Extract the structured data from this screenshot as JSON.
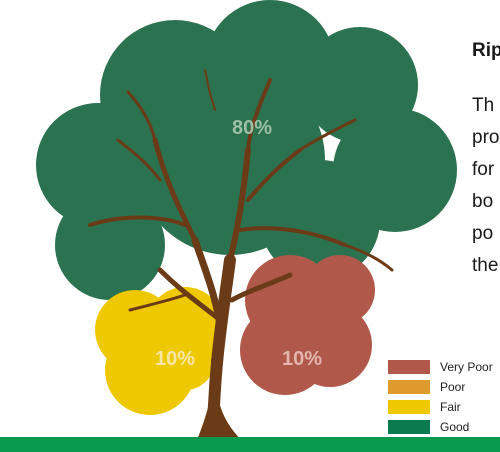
{
  "title": "Rip",
  "body_lines": [
    "Th",
    "pro",
    "for",
    "bo",
    "po",
    "the"
  ],
  "canopy": [
    {
      "label": "80%",
      "value": 80,
      "category": "Good",
      "color": "#2a7250"
    },
    {
      "label": "10%",
      "value": 10,
      "category": "Fair",
      "color": "#eec800"
    },
    {
      "label": "10%",
      "value": 10,
      "category": "Very Poor",
      "color": "#b0584a"
    }
  ],
  "legend": [
    {
      "label": "Very Poor",
      "color": "#b0584a"
    },
    {
      "label": "Poor",
      "color": "#de9a2c"
    },
    {
      "label": "Fair",
      "color": "#eec800"
    },
    {
      "label": "Good",
      "color": "#0a7a4f"
    }
  ],
  "colors": {
    "trunk": "#6b3a16",
    "ground": "#0a9a4e"
  }
}
